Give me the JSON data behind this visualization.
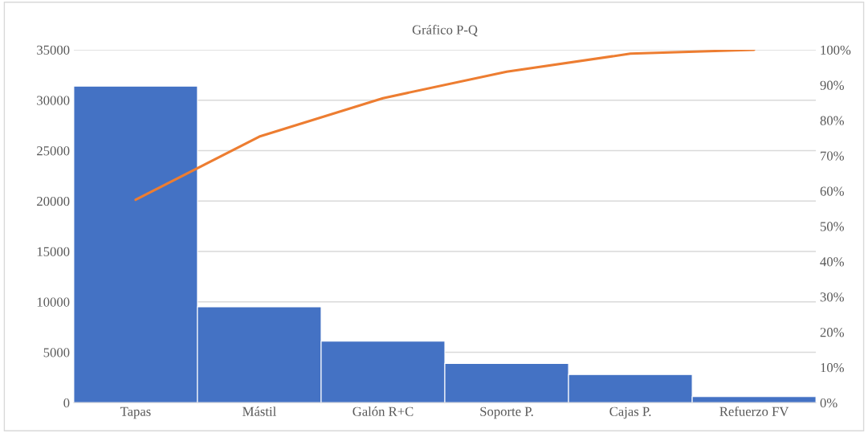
{
  "chart_data": {
    "type": "bar",
    "title": "Gráfico P-Q",
    "categories": [
      "Tapas",
      "Mástil",
      "Galón R+C",
      "Soporte P.",
      "Cajas P.",
      "Refuerzo FV"
    ],
    "series": [
      {
        "color": "#4472c4",
        "values": [
          31400,
          9500,
          6100,
          3900,
          2800,
          600
        ]
      },
      {
        "type": "line",
        "axis": "y2",
        "color": "#ed7d31",
        "values": [
          57.5,
          75.4,
          86.3,
          93.8,
          98.9,
          100
        ]
      }
    ],
    "ylim": [
      0,
      35000
    ],
    "yticks": [
      0,
      5000,
      10000,
      15000,
      20000,
      25000,
      30000,
      35000
    ],
    "y2lim": [
      0,
      100
    ],
    "y2ticks": [
      {
        "value": 0,
        "label": "0%"
      },
      {
        "value": 10,
        "label": "10%"
      },
      {
        "value": 20,
        "label": "20%"
      },
      {
        "value": 30,
        "label": "30%"
      },
      {
        "value": 40,
        "label": "40%"
      },
      {
        "value": 50,
        "label": "50%"
      },
      {
        "value": 60,
        "label": "60%"
      },
      {
        "value": 70,
        "label": "70%"
      },
      {
        "value": 80,
        "label": "80%"
      },
      {
        "value": 90,
        "label": "90%"
      },
      {
        "value": 100,
        "label": "100%"
      }
    ],
    "grid": "y",
    "legend": false
  }
}
